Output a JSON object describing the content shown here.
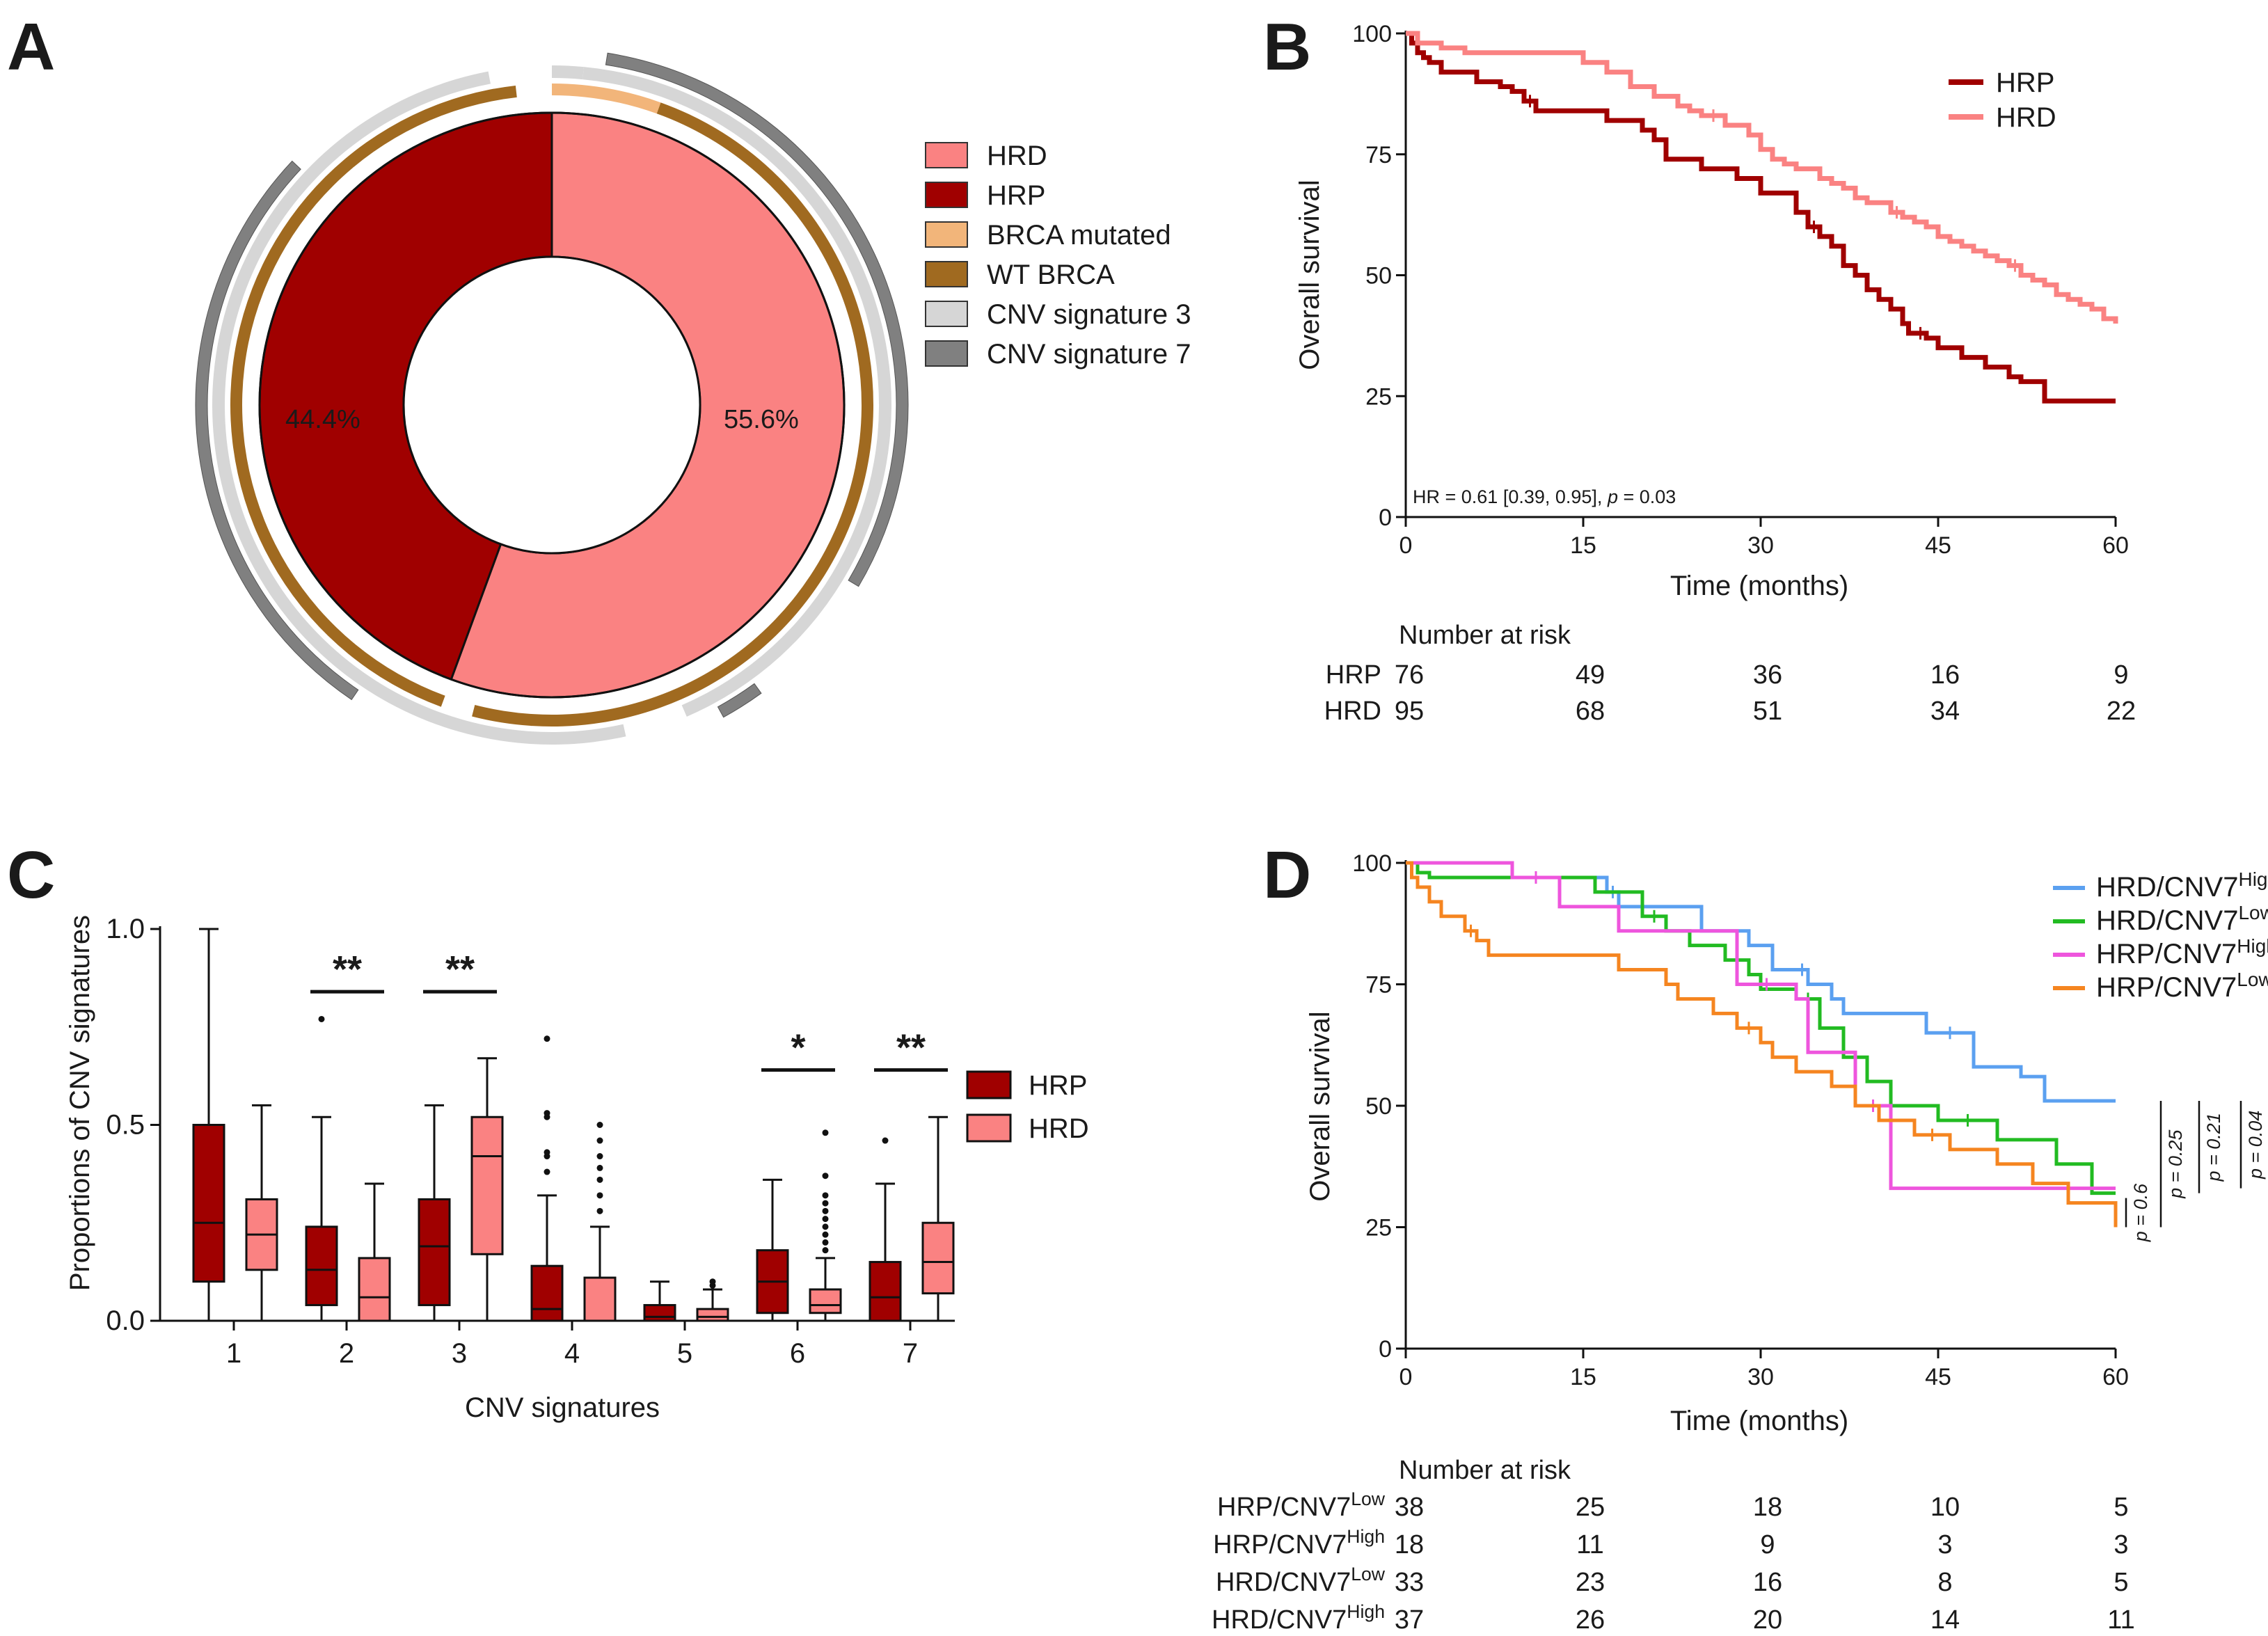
{
  "chart_data": [
    {
      "panel": "A",
      "type": "pie",
      "inner_ring": {
        "slices": [
          {
            "label": "HRD",
            "value": 55.6,
            "display": "55.6%",
            "color": "#FA8282"
          },
          {
            "label": "HRP",
            "value": 44.4,
            "display": "44.4%",
            "color": "#A00000"
          }
        ]
      },
      "brca_ring": {
        "slices": [
          {
            "label": "BRCA mutated",
            "value": 5.5,
            "color": "#F2B57A"
          },
          {
            "label": "WT BRCA",
            "value": 48.5,
            "color": "#A06A20"
          },
          {
            "label": "BRCA gap",
            "value": 1.6,
            "color": "#FFFFFF"
          },
          {
            "label": "WT BRCA",
            "value": 42.6,
            "color": "#A06A20"
          },
          {
            "label": "BRCA gap",
            "value": 1.8,
            "color": "#FFFFFF"
          }
        ]
      },
      "cnv_inner_ring": {
        "slices": [
          {
            "label": "CNV signature 3",
            "value": 1.5,
            "color": "#D6D6D6"
          },
          {
            "label": "CNV signature 3",
            "value": 42.0,
            "color": "#D6D6D6"
          },
          {
            "label": "gap",
            "value": 3.0,
            "color": "#FFFFFF"
          },
          {
            "label": "CNV signature 3",
            "value": 50.5,
            "color": "#D6D6D6"
          },
          {
            "label": "gap",
            "value": 3.0,
            "color": "#FFFFFF"
          }
        ]
      },
      "cnv_outer_arcs": [
        {
          "label": "CNV signature 7",
          "start": 2.5,
          "end": 33.5,
          "color": "#808080"
        },
        {
          "label": "CNV signature 7",
          "start": 40.0,
          "end": 42.0,
          "color": "#808080"
        },
        {
          "label": "CNV signature 7",
          "start": 59.5,
          "end": 87.0,
          "color": "#808080"
        }
      ],
      "legend": [
        {
          "label": "HRD",
          "color": "#FA8282"
        },
        {
          "label": "HRP",
          "color": "#A00000"
        },
        {
          "label": "BRCA mutated",
          "color": "#F2B57A"
        },
        {
          "label": "WT BRCA",
          "color": "#A06A20"
        },
        {
          "label": "CNV signature 3",
          "color": "#D6D6D6"
        },
        {
          "label": "CNV signature 7",
          "color": "#808080"
        }
      ]
    },
    {
      "panel": "B",
      "type": "line",
      "title": "",
      "xlabel": "Time (months)",
      "ylabel": "Overall survival",
      "xlim": [
        0,
        60
      ],
      "ylim": [
        0,
        100
      ],
      "xticks": [
        0,
        15,
        30,
        45,
        60
      ],
      "yticks": [
        0,
        25,
        50,
        75,
        100
      ],
      "annotation": {
        "prefix": "HR = 0.61 [0.39, 0.95], ",
        "p": "p",
        "suffix": " = 0.03"
      },
      "series": [
        {
          "name": "HRP",
          "color": "#A00000",
          "x": [
            0,
            0.5,
            1,
            1.5,
            2,
            3,
            4,
            6,
            8,
            9,
            10,
            11,
            13,
            17,
            20,
            21,
            22,
            25,
            28,
            30,
            33,
            34,
            35,
            36,
            37,
            38,
            39,
            40,
            41,
            42,
            42.5,
            43,
            44,
            45,
            47,
            48,
            49,
            51,
            52,
            54,
            60
          ],
          "y": [
            100,
            98,
            96,
            95,
            94,
            92,
            92,
            90,
            89,
            88,
            86,
            84,
            84,
            82,
            80,
            78,
            74,
            72,
            70,
            67,
            63,
            60,
            58,
            56,
            52,
            50,
            47,
            45,
            43,
            40,
            38,
            38,
            37,
            35,
            33,
            33,
            31,
            29,
            28,
            24,
            24
          ]
        },
        {
          "name": "HRD",
          "color": "#FA8282",
          "x": [
            0,
            1,
            3,
            5,
            15,
            17,
            19,
            21,
            23,
            24,
            25,
            27,
            29,
            30,
            31,
            32,
            33,
            35,
            36,
            37,
            38,
            39,
            41,
            42,
            43,
            44,
            45,
            46,
            47,
            48,
            49,
            50,
            51,
            52,
            53,
            54,
            55,
            56,
            57,
            58,
            59,
            60
          ],
          "y": [
            100,
            98,
            97,
            96,
            94,
            92,
            89,
            87,
            85,
            84,
            83,
            81,
            79,
            76,
            74,
            73,
            72,
            70,
            69,
            68,
            66,
            65,
            63,
            62,
            61,
            60,
            58,
            57,
            56,
            55,
            54,
            53,
            52,
            50,
            49,
            48,
            46,
            45,
            44,
            43,
            41,
            40
          ]
        }
      ],
      "risk_table": {
        "title": "Number at risk",
        "rows": [
          {
            "label": "HRP",
            "color": "#A00000",
            "values": [
              "76",
              "49",
              "36",
              "16",
              "9"
            ]
          },
          {
            "label": "HRD",
            "color": "#FA8282",
            "values": [
              "95",
              "68",
              "51",
              "34",
              "22"
            ]
          }
        ]
      }
    },
    {
      "panel": "C",
      "type": "bar",
      "subtype": "boxplot",
      "xlabel": "CNV signatures",
      "ylabel": "Proportions of CNV signatures",
      "ylim": [
        0,
        1
      ],
      "yticks": [
        "0.0",
        "0.5",
        "1.0"
      ],
      "categories": [
        "1",
        "2",
        "3",
        "4",
        "5",
        "6",
        "7"
      ],
      "series": [
        {
          "name": "HRP",
          "color": "#A00000",
          "boxes": [
            {
              "min": 0,
              "q1": 0.1,
              "median": 0.25,
              "q3": 0.5,
              "max": 1.0,
              "outliers": []
            },
            {
              "min": 0,
              "q1": 0.04,
              "median": 0.13,
              "q3": 0.24,
              "max": 0.52,
              "outliers": [
                0.77
              ]
            },
            {
              "min": 0,
              "q1": 0.04,
              "median": 0.19,
              "q3": 0.31,
              "max": 0.55,
              "outliers": []
            },
            {
              "min": 0,
              "q1": 0.0,
              "median": 0.03,
              "q3": 0.14,
              "max": 0.32,
              "outliers": [
                0.38,
                0.42,
                0.43,
                0.52,
                0.53,
                0.72
              ]
            },
            {
              "min": 0,
              "q1": 0.0,
              "median": 0.01,
              "q3": 0.04,
              "max": 0.1,
              "outliers": []
            },
            {
              "min": 0,
              "q1": 0.02,
              "median": 0.1,
              "q3": 0.18,
              "max": 0.36,
              "outliers": []
            },
            {
              "min": 0,
              "q1": 0.0,
              "median": 0.06,
              "q3": 0.15,
              "max": 0.35,
              "outliers": [
                0.46
              ]
            }
          ]
        },
        {
          "name": "HRD",
          "color": "#FA8282",
          "boxes": [
            {
              "min": 0,
              "q1": 0.13,
              "median": 0.22,
              "q3": 0.31,
              "max": 0.55,
              "outliers": []
            },
            {
              "min": 0,
              "q1": 0.0,
              "median": 0.06,
              "q3": 0.16,
              "max": 0.35,
              "outliers": []
            },
            {
              "min": 0,
              "q1": 0.17,
              "median": 0.42,
              "q3": 0.52,
              "max": 0.67,
              "outliers": []
            },
            {
              "min": 0,
              "q1": 0.0,
              "median": 0.0,
              "q3": 0.11,
              "max": 0.24,
              "outliers": [
                0.28,
                0.32,
                0.36,
                0.39,
                0.42,
                0.46,
                0.5
              ]
            },
            {
              "min": 0,
              "q1": 0.0,
              "median": 0.01,
              "q3": 0.03,
              "max": 0.08,
              "outliers": [
                0.09,
                0.1
              ]
            },
            {
              "min": 0,
              "q1": 0.02,
              "median": 0.04,
              "q3": 0.08,
              "max": 0.16,
              "outliers": [
                0.18,
                0.2,
                0.22,
                0.24,
                0.26,
                0.28,
                0.3,
                0.32,
                0.37,
                0.48
              ]
            },
            {
              "min": 0,
              "q1": 0.07,
              "median": 0.15,
              "q3": 0.25,
              "max": 0.52,
              "outliers": []
            }
          ]
        }
      ],
      "significance": [
        {
          "category": "2",
          "label": "**",
          "level": 0.84
        },
        {
          "category": "3",
          "label": "**",
          "level": 0.84
        },
        {
          "category": "6",
          "label": "*",
          "level": 0.64
        },
        {
          "category": "7",
          "label": "**",
          "level": 0.64
        }
      ],
      "legend": [
        {
          "label": "HRP",
          "color": "#A00000"
        },
        {
          "label": "HRD",
          "color": "#FA8282"
        }
      ]
    },
    {
      "panel": "D",
      "type": "line",
      "xlabel": "Time (months)",
      "ylabel": "Overall survival",
      "xlim": [
        0,
        60
      ],
      "ylim": [
        0,
        100
      ],
      "xticks": [
        0,
        15,
        30,
        45,
        60
      ],
      "yticks": [
        0,
        25,
        50,
        75,
        100
      ],
      "series": [
        {
          "name": "HRD/CNV7",
          "sup": "High",
          "color": "#5BA0F0",
          "x": [
            0,
            1,
            2,
            13,
            17,
            18,
            25,
            28,
            29,
            31,
            33,
            34,
            36,
            37,
            40,
            44,
            48,
            52,
            54,
            60
          ],
          "y": [
            100,
            98,
            97,
            97,
            94,
            91,
            86,
            86,
            83,
            78,
            78,
            75,
            72,
            69,
            69,
            65,
            58,
            56,
            51,
            51
          ]
        },
        {
          "name": "HRD/CNV7",
          "sup": "Low",
          "color": "#22BB22",
          "x": [
            0,
            1,
            2,
            16,
            20,
            22,
            24,
            27,
            29,
            30,
            33,
            35,
            37,
            39,
            41,
            45,
            50,
            55,
            58,
            60
          ],
          "y": [
            100,
            98,
            97,
            94,
            89,
            86,
            83,
            80,
            77,
            74,
            72,
            66,
            60,
            55,
            50,
            47,
            43,
            38,
            32,
            32
          ]
        },
        {
          "name": "HRP/CNV7",
          "sup": "High",
          "color": "#EE55DD",
          "x": [
            0,
            9,
            13,
            18,
            28,
            33,
            34,
            38,
            41,
            60
          ],
          "y": [
            100,
            97,
            91,
            86,
            75,
            72,
            61,
            50,
            33,
            33
          ]
        },
        {
          "name": "HRP/CNV7",
          "sup": "Low",
          "color": "#F58520",
          "x": [
            0,
            0.5,
            1,
            2,
            3,
            5,
            6,
            7,
            18,
            22,
            23,
            26,
            28,
            30,
            31,
            33,
            36,
            38,
            40,
            43,
            46,
            50,
            53,
            56,
            60
          ],
          "y": [
            100,
            97,
            95,
            92,
            89,
            86,
            84,
            81,
            78,
            75,
            72,
            69,
            66,
            63,
            60,
            57,
            54,
            50,
            47,
            44,
            41,
            38,
            34,
            30,
            25
          ]
        }
      ],
      "pvalues": [
        {
          "text": "p = 0.6"
        },
        {
          "text": "p = 0.25"
        },
        {
          "text": "p = 0.21"
        },
        {
          "text": "p = 0.04"
        }
      ],
      "risk_table": {
        "title": "Number at risk",
        "rows": [
          {
            "label": "HRP/CNV7",
            "sup": "Low",
            "color": "#F58520",
            "values": [
              "38",
              "25",
              "18",
              "10",
              "5"
            ]
          },
          {
            "label": "HRP/CNV7",
            "sup": "High",
            "color": "#EE55DD",
            "values": [
              "18",
              "11",
              "9",
              "3",
              "3"
            ]
          },
          {
            "label": "HRD/CNV7",
            "sup": "Low",
            "color": "#22BB22",
            "values": [
              "33",
              "23",
              "16",
              "8",
              "5"
            ]
          },
          {
            "label": "HRD/CNV7",
            "sup": "High",
            "color": "#5BA0F0",
            "values": [
              "37",
              "26",
              "20",
              "14",
              "11"
            ]
          }
        ]
      }
    }
  ],
  "panel_letters": [
    "A",
    "B",
    "C",
    "D"
  ]
}
